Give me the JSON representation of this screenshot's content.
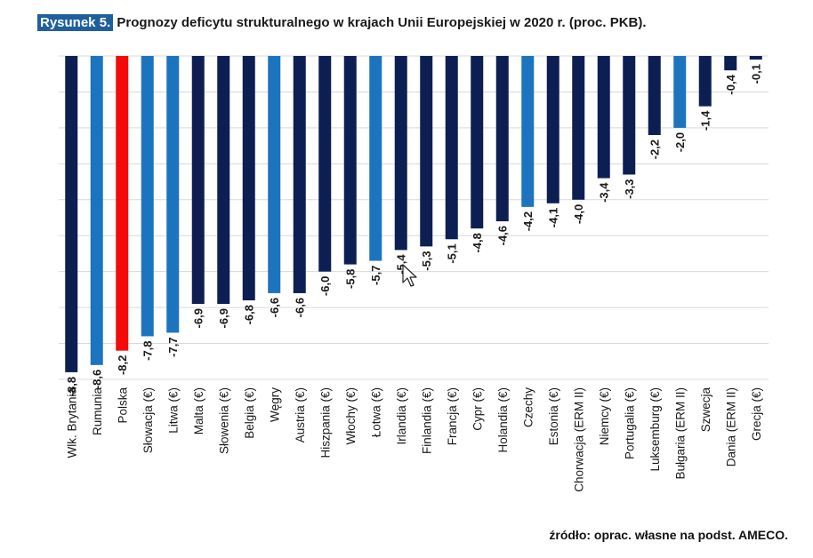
{
  "figure": {
    "tag": "Rysunek 5.",
    "title": "Prognozy deficytu strukturalnego w krajach Unii Europejskiej w 2020 r. (proc. PKB).",
    "source": "źródło: oprac. własne na podst. AMECO."
  },
  "chart_data": {
    "type": "bar",
    "title": "Prognozy deficytu strukturalnego w krajach Unii Europejskiej w 2020 r. (proc. PKB).",
    "xlabel": "",
    "ylabel": "",
    "ylim": [
      -9,
      0
    ],
    "grid": true,
    "categories": [
      "Wlk. Brytania",
      "Rumunia",
      "Polska",
      "Słowacja (€)",
      "Litwa (€)",
      "Malta (€)",
      "Słowenia (€)",
      "Belgia (€)",
      "Węgry",
      "Austria (€)",
      "Hiszpania (€)",
      "Włochy (€)",
      "Łotwa (€)",
      "Irlandia (€)",
      "Finlandia (€)",
      "Francja (€)",
      "Cypr (€)",
      "Holandia (€)",
      "Czechy",
      "Estonia (€)",
      "Chorwacja (ERM II)",
      "Niemcy (€)",
      "Portugalia (€)",
      "Luksemburg (€)",
      "Bułgaria (ERM II)",
      "Szwecja",
      "Dania (ERM II)",
      "Grecja (€)"
    ],
    "values": [
      -8.8,
      -8.6,
      -8.2,
      -7.8,
      -7.7,
      -6.9,
      -6.9,
      -6.8,
      -6.6,
      -6.6,
      -6.0,
      -5.8,
      -5.7,
      -5.4,
      -5.3,
      -5.1,
      -4.8,
      -4.6,
      -4.2,
      -4.1,
      -4.0,
      -3.4,
      -3.3,
      -2.2,
      -2.0,
      -1.4,
      -0.4,
      -0.1
    ],
    "labels": [
      "-8,8",
      "-8,6",
      "-8,2",
      "-7,8",
      "-7,7",
      "-6,9",
      "-6,9",
      "-6,8",
      "-6,6",
      "-6,6",
      "-6,0",
      "-5,8",
      "-5,7",
      "-5,4",
      "-5,3",
      "-5,1",
      "-4,8",
      "-4,6",
      "-4,2",
      "-4,1",
      "-4,0",
      "-3,4",
      "-3,3",
      "-2,2",
      "-2,0",
      "-1,4",
      "-0,4",
      "-0,1"
    ],
    "bar_colors": [
      "#0d1f52",
      "#1c74bf",
      "#f50a0a",
      "#1c74bf",
      "#1c74bf",
      "#0d1f52",
      "#0d1f52",
      "#0d1f52",
      "#1c74bf",
      "#0d1f52",
      "#0d1f52",
      "#0d1f52",
      "#1c74bf",
      "#0d1f52",
      "#0d1f52",
      "#0d1f52",
      "#0d1f52",
      "#0d1f52",
      "#1c74bf",
      "#0d1f52",
      "#0d1f52",
      "#0d1f52",
      "#0d1f52",
      "#0d1f52",
      "#1c74bf",
      "#0d1f52",
      "#0d1f52",
      "#0d1f52"
    ],
    "colors": {
      "dark_blue": "#0d1f52",
      "light_blue": "#1c74bf",
      "highlight_red": "#f50a0a",
      "gridline": "#d9d9d9",
      "title_tag_bg": "#1f5f9e"
    }
  },
  "cursor_icon": "mouse-pointer-icon"
}
